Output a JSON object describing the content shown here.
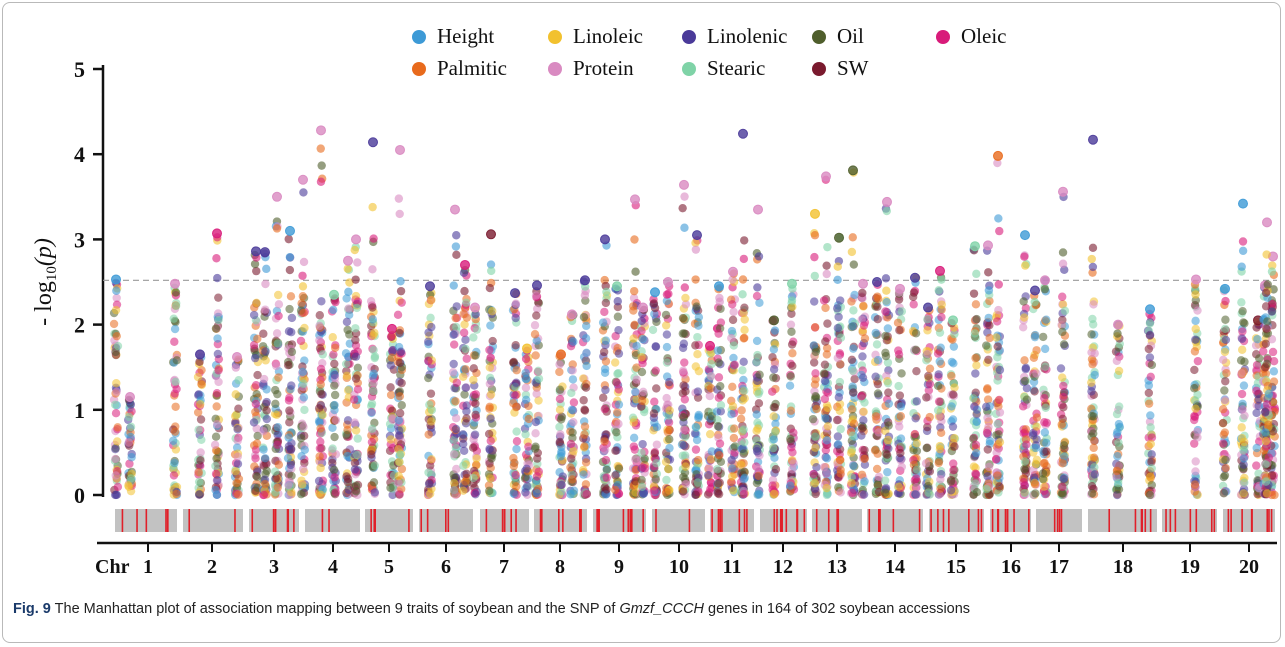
{
  "chart_data": {
    "type": "scatter",
    "ylabel": "- log10(p)",
    "ylabel_prefix": "- log",
    "ylabel_sub": "10",
    "ylabel_suffix": "(p)",
    "ylim": [
      0,
      5
    ],
    "yticks": [
      "0",
      "1",
      "2",
      "3",
      "4",
      "5"
    ],
    "threshold": 2.52,
    "x_axis_prefix": "Chr",
    "chromosomes": [
      "1",
      "2",
      "3",
      "4",
      "5",
      "6",
      "7",
      "8",
      "9",
      "10",
      "11",
      "12",
      "13",
      "14",
      "15",
      "16",
      "17",
      "18",
      "19",
      "20"
    ],
    "legend": [
      {
        "name": "Height",
        "color": "#3d9ad6"
      },
      {
        "name": "Linoleic",
        "color": "#f2c12e"
      },
      {
        "name": "Linolenic",
        "color": "#4a3a99"
      },
      {
        "name": "Oil",
        "color": "#4f5e2c"
      },
      {
        "name": "Oleic",
        "color": "#d81b7a"
      },
      {
        "name": "Palmitic",
        "color": "#e86a1c"
      },
      {
        "name": "Protein",
        "color": "#d98ac1"
      },
      {
        "name": "Stearic",
        "color": "#7fd3a7"
      },
      {
        "name": "SW",
        "color": "#7a1a2e"
      }
    ],
    "columns": [
      {
        "chr": "1",
        "top": 2.53,
        "trait": "Height"
      },
      {
        "chr": "1",
        "top": 1.15,
        "trait": "Protein"
      },
      {
        "chr": "1",
        "top": 2.48,
        "trait": "Protein"
      },
      {
        "chr": "2",
        "top": 1.65,
        "trait": "Linolenic"
      },
      {
        "chr": "2",
        "top": 3.07,
        "trait": "Oleic"
      },
      {
        "chr": "2",
        "top": 1.62,
        "trait": "Protein"
      },
      {
        "chr": "2",
        "top": 2.86,
        "trait": "Linolenic"
      },
      {
        "chr": "2",
        "top": 2.85,
        "trait": "Linolenic"
      },
      {
        "chr": "3",
        "top": 3.5,
        "trait": "Protein"
      },
      {
        "chr": "3",
        "top": 3.1,
        "trait": "Height"
      },
      {
        "chr": "3",
        "top": 3.7,
        "trait": "Protein"
      },
      {
        "chr": "3",
        "top": 4.28,
        "trait": "Protein"
      },
      {
        "chr": "3",
        "top": 2.35,
        "trait": "Stearic"
      },
      {
        "chr": "4",
        "top": 2.75,
        "trait": "Protein"
      },
      {
        "chr": "4",
        "top": 3.0,
        "trait": "Protein"
      },
      {
        "chr": "4",
        "top": 4.14,
        "trait": "Linolenic"
      },
      {
        "chr": "4",
        "top": 1.95,
        "trait": "Oleic"
      },
      {
        "chr": "4",
        "top": 4.05,
        "trait": "Protein"
      },
      {
        "chr": "5",
        "top": 2.45,
        "trait": "Linolenic"
      },
      {
        "chr": "5",
        "top": 3.35,
        "trait": "Protein"
      },
      {
        "chr": "5",
        "top": 2.7,
        "trait": "Oleic"
      },
      {
        "chr": "6",
        "top": 2.2,
        "trait": "Protein"
      },
      {
        "chr": "6",
        "top": 3.06,
        "trait": "SW"
      },
      {
        "chr": "6",
        "top": 2.37,
        "trait": "Linolenic"
      },
      {
        "chr": "7",
        "top": 1.72,
        "trait": "Linoleic"
      },
      {
        "chr": "7",
        "top": 2.46,
        "trait": "Linolenic"
      },
      {
        "chr": "7",
        "top": 1.65,
        "trait": "Palmitic"
      },
      {
        "chr": "7",
        "top": 2.12,
        "trait": "Protein"
      },
      {
        "chr": "8",
        "top": 2.52,
        "trait": "Linolenic"
      },
      {
        "chr": "8",
        "top": 3.0,
        "trait": "Linolenic"
      },
      {
        "chr": "8",
        "top": 2.45,
        "trait": "Stearic"
      },
      {
        "chr": "8",
        "top": 3.47,
        "trait": "Protein"
      },
      {
        "chr": "8",
        "top": 2.2,
        "trait": "Protein"
      },
      {
        "chr": "9",
        "top": 2.38,
        "trait": "Height"
      },
      {
        "chr": "9",
        "top": 2.5,
        "trait": "Protein"
      },
      {
        "chr": "9",
        "top": 3.64,
        "trait": "Protein"
      },
      {
        "chr": "9",
        "top": 3.05,
        "trait": "Linolenic"
      },
      {
        "chr": "10",
        "top": 1.75,
        "trait": "Oleic"
      },
      {
        "chr": "10",
        "top": 2.45,
        "trait": "Height"
      },
      {
        "chr": "10",
        "top": 2.62,
        "trait": "Protein"
      },
      {
        "chr": "10",
        "top": 4.24,
        "trait": "Linolenic"
      },
      {
        "chr": "11",
        "top": 3.35,
        "trait": "Protein"
      },
      {
        "chr": "11",
        "top": 2.05,
        "trait": "Oil"
      },
      {
        "chr": "11",
        "top": 2.48,
        "trait": "Stearic"
      },
      {
        "chr": "12",
        "top": 3.3,
        "trait": "Linoleic"
      },
      {
        "chr": "12",
        "top": 3.74,
        "trait": "Protein"
      },
      {
        "chr": "12",
        "top": 3.02,
        "trait": "Oil"
      },
      {
        "chr": "12",
        "top": 3.81,
        "trait": "Oil"
      },
      {
        "chr": "12",
        "top": 2.48,
        "trait": "Protein"
      },
      {
        "chr": "13",
        "top": 2.5,
        "trait": "Linolenic"
      },
      {
        "chr": "13",
        "top": 3.44,
        "trait": "Protein"
      },
      {
        "chr": "13",
        "top": 2.42,
        "trait": "Protein"
      },
      {
        "chr": "13",
        "top": 2.55,
        "trait": "Linolenic"
      },
      {
        "chr": "14",
        "top": 2.2,
        "trait": "Linolenic"
      },
      {
        "chr": "14",
        "top": 2.63,
        "trait": "Oleic"
      },
      {
        "chr": "14",
        "top": 2.05,
        "trait": "Stearic"
      },
      {
        "chr": "14",
        "top": 2.92,
        "trait": "Stearic"
      },
      {
        "chr": "15",
        "top": 2.93,
        "trait": "Protein"
      },
      {
        "chr": "15",
        "top": 3.98,
        "trait": "Palmitic"
      },
      {
        "chr": "15",
        "top": 3.05,
        "trait": "Height"
      },
      {
        "chr": "15",
        "top": 2.4,
        "trait": "Linolenic"
      },
      {
        "chr": "16",
        "top": 2.52,
        "trait": "Protein"
      },
      {
        "chr": "16",
        "top": 3.56,
        "trait": "Protein"
      },
      {
        "chr": "16",
        "top": 4.17,
        "trait": "Linolenic"
      },
      {
        "chr": "17",
        "top": 2.0,
        "trait": "Protein"
      },
      {
        "chr": "18",
        "top": 2.18,
        "trait": "Height"
      },
      {
        "chr": "18",
        "top": 2.53,
        "trait": "Protein"
      },
      {
        "chr": "19",
        "top": 2.42,
        "trait": "Height"
      },
      {
        "chr": "19",
        "top": 3.42,
        "trait": "Height"
      },
      {
        "chr": "20",
        "top": 2.05,
        "trait": "SW"
      },
      {
        "chr": "20",
        "top": 2.46,
        "trait": "Protein"
      },
      {
        "chr": "20",
        "top": 2.8,
        "trait": "Protein"
      },
      {
        "chr": "20",
        "top": 3.2,
        "trait": "Protein"
      }
    ]
  },
  "caption": {
    "label": "Fig. 9",
    "text_before": " The Manhattan plot of association mapping between 9 traits of soybean and the SNP of ",
    "gene": "Gmzf_CCCH",
    "text_after": " genes in 164 of 302 soybean accessions"
  }
}
